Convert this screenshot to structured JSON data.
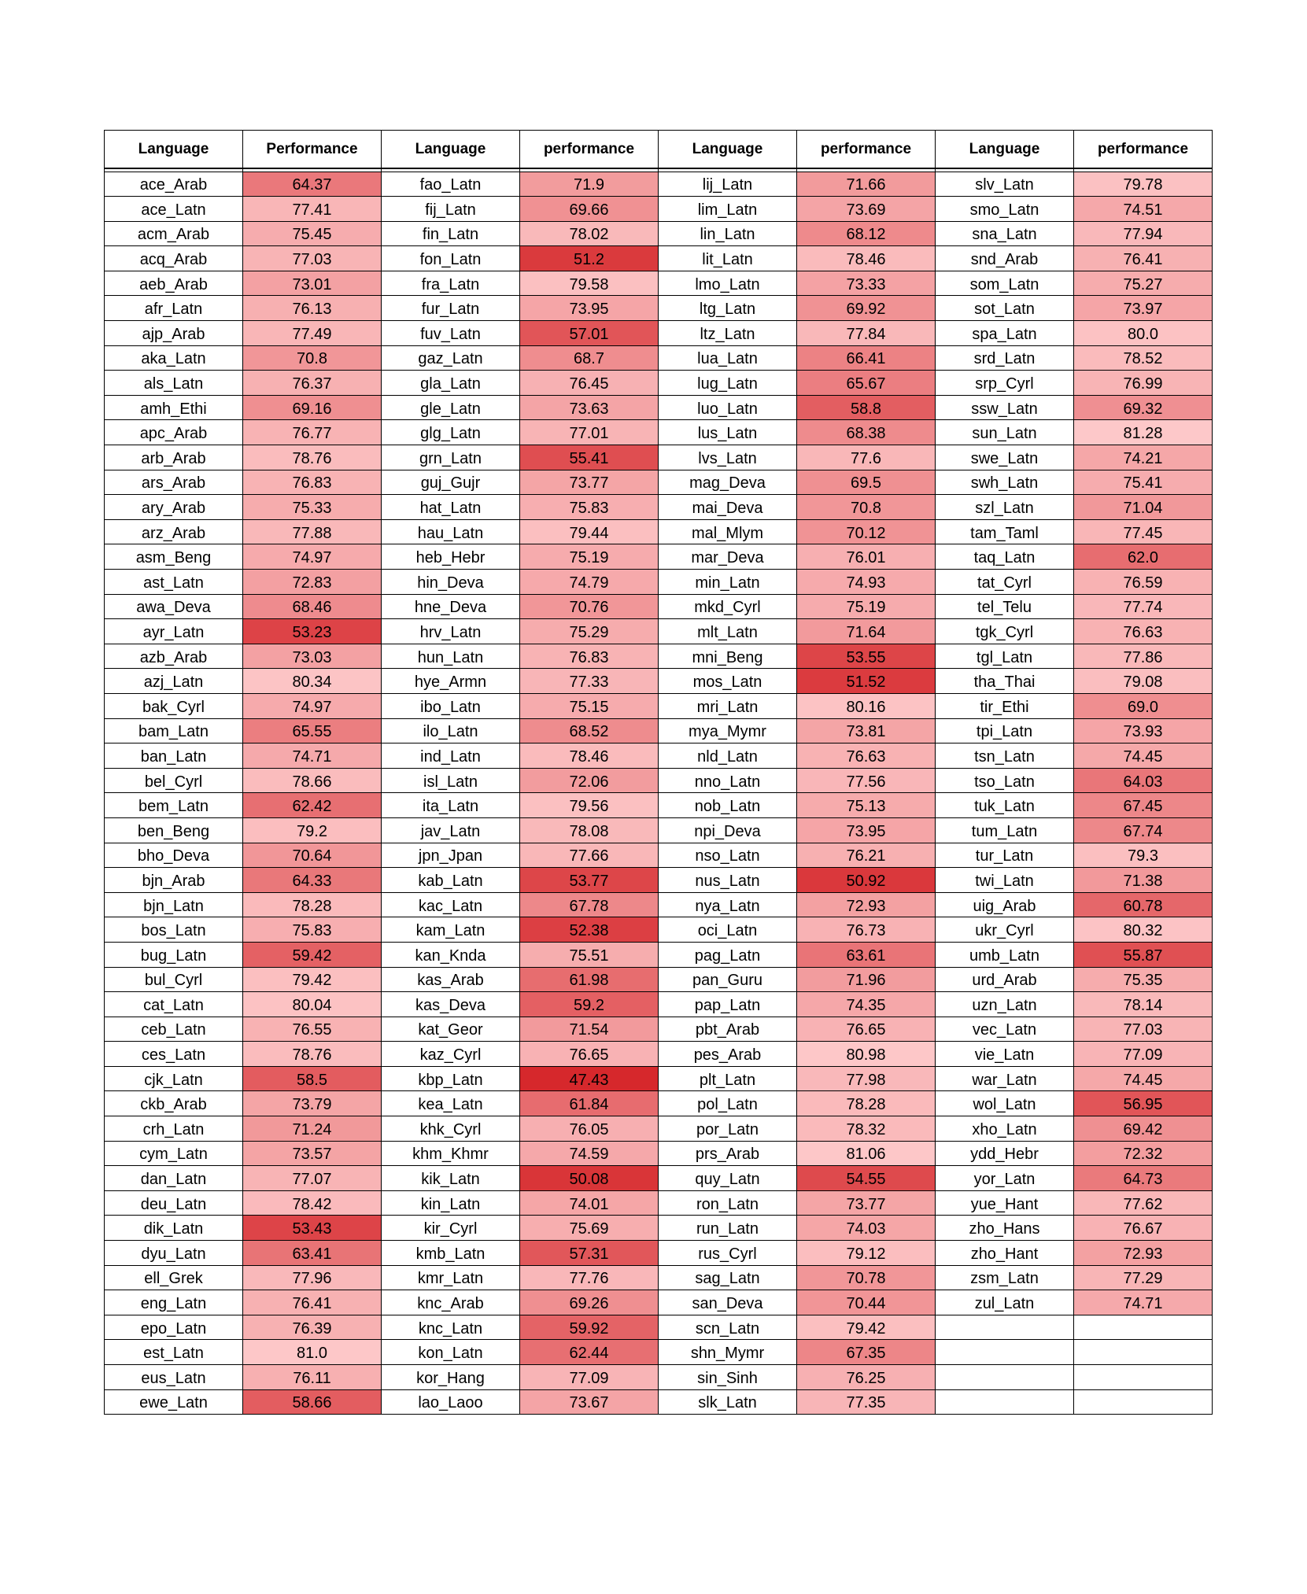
{
  "table": {
    "headers": [
      "Language",
      "Performance",
      "Language",
      "performance",
      "Language",
      "performance",
      "Language",
      "performance"
    ],
    "columns": [
      [
        [
          "ace_Arab",
          "64.37"
        ],
        [
          "ace_Latn",
          "77.41"
        ],
        [
          "acm_Arab",
          "75.45"
        ],
        [
          "acq_Arab",
          "77.03"
        ],
        [
          "aeb_Arab",
          "73.01"
        ],
        [
          "afr_Latn",
          "76.13"
        ],
        [
          "ajp_Arab",
          "77.49"
        ],
        [
          "aka_Latn",
          "70.8"
        ],
        [
          "als_Latn",
          "76.37"
        ],
        [
          "amh_Ethi",
          "69.16"
        ],
        [
          "apc_Arab",
          "76.77"
        ],
        [
          "arb_Arab",
          "78.76"
        ],
        [
          "ars_Arab",
          "76.83"
        ],
        [
          "ary_Arab",
          "75.33"
        ],
        [
          "arz_Arab",
          "77.88"
        ],
        [
          "asm_Beng",
          "74.97"
        ],
        [
          "ast_Latn",
          "72.83"
        ],
        [
          "awa_Deva",
          "68.46"
        ],
        [
          "ayr_Latn",
          "53.23"
        ],
        [
          "azb_Arab",
          "73.03"
        ],
        [
          "azj_Latn",
          "80.34"
        ],
        [
          "bak_Cyrl",
          "74.97"
        ],
        [
          "bam_Latn",
          "65.55"
        ],
        [
          "ban_Latn",
          "74.71"
        ],
        [
          "bel_Cyrl",
          "78.66"
        ],
        [
          "bem_Latn",
          "62.42"
        ],
        [
          "ben_Beng",
          "79.2"
        ],
        [
          "bho_Deva",
          "70.64"
        ],
        [
          "bjn_Arab",
          "64.33"
        ],
        [
          "bjn_Latn",
          "78.28"
        ],
        [
          "bos_Latn",
          "75.83"
        ],
        [
          "bug_Latn",
          "59.42"
        ],
        [
          "bul_Cyrl",
          "79.42"
        ],
        [
          "cat_Latn",
          "80.04"
        ],
        [
          "ceb_Latn",
          "76.55"
        ],
        [
          "ces_Latn",
          "78.76"
        ],
        [
          "cjk_Latn",
          "58.5"
        ],
        [
          "ckb_Arab",
          "73.79"
        ],
        [
          "crh_Latn",
          "71.24"
        ],
        [
          "cym_Latn",
          "73.57"
        ],
        [
          "dan_Latn",
          "77.07"
        ],
        [
          "deu_Latn",
          "78.42"
        ],
        [
          "dik_Latn",
          "53.43"
        ],
        [
          "dyu_Latn",
          "63.41"
        ],
        [
          "ell_Grek",
          "77.96"
        ],
        [
          "eng_Latn",
          "76.41"
        ],
        [
          "epo_Latn",
          "76.39"
        ],
        [
          "est_Latn",
          "81.0"
        ],
        [
          "eus_Latn",
          "76.11"
        ],
        [
          "ewe_Latn",
          "58.66"
        ]
      ],
      [
        [
          "fao_Latn",
          "71.9"
        ],
        [
          "fij_Latn",
          "69.66"
        ],
        [
          "fin_Latn",
          "78.02"
        ],
        [
          "fon_Latn",
          "51.2"
        ],
        [
          "fra_Latn",
          "79.58"
        ],
        [
          "fur_Latn",
          "73.95"
        ],
        [
          "fuv_Latn",
          "57.01"
        ],
        [
          "gaz_Latn",
          "68.7"
        ],
        [
          "gla_Latn",
          "76.45"
        ],
        [
          "gle_Latn",
          "73.63"
        ],
        [
          "glg_Latn",
          "77.01"
        ],
        [
          "grn_Latn",
          "55.41"
        ],
        [
          "guj_Gujr",
          "73.77"
        ],
        [
          "hat_Latn",
          "75.83"
        ],
        [
          "hau_Latn",
          "79.44"
        ],
        [
          "heb_Hebr",
          "75.19"
        ],
        [
          "hin_Deva",
          "74.79"
        ],
        [
          "hne_Deva",
          "70.76"
        ],
        [
          "hrv_Latn",
          "75.29"
        ],
        [
          "hun_Latn",
          "76.83"
        ],
        [
          "hye_Armn",
          "77.33"
        ],
        [
          "ibo_Latn",
          "75.15"
        ],
        [
          "ilo_Latn",
          "68.52"
        ],
        [
          "ind_Latn",
          "78.46"
        ],
        [
          "isl_Latn",
          "72.06"
        ],
        [
          "ita_Latn",
          "79.56"
        ],
        [
          "jav_Latn",
          "78.08"
        ],
        [
          "jpn_Jpan",
          "77.66"
        ],
        [
          "kab_Latn",
          "53.77"
        ],
        [
          "kac_Latn",
          "67.78"
        ],
        [
          "kam_Latn",
          "52.38"
        ],
        [
          "kan_Knda",
          "75.51"
        ],
        [
          "kas_Arab",
          "61.98"
        ],
        [
          "kas_Deva",
          "59.2"
        ],
        [
          "kat_Geor",
          "71.54"
        ],
        [
          "kaz_Cyrl",
          "76.65"
        ],
        [
          "kbp_Latn",
          "47.43"
        ],
        [
          "kea_Latn",
          "61.84"
        ],
        [
          "khk_Cyrl",
          "76.05"
        ],
        [
          "khm_Khmr",
          "74.59"
        ],
        [
          "kik_Latn",
          "50.08"
        ],
        [
          "kin_Latn",
          "74.01"
        ],
        [
          "kir_Cyrl",
          "75.69"
        ],
        [
          "kmb_Latn",
          "57.31"
        ],
        [
          "kmr_Latn",
          "77.76"
        ],
        [
          "knc_Arab",
          "69.26"
        ],
        [
          "knc_Latn",
          "59.92"
        ],
        [
          "kon_Latn",
          "62.44"
        ],
        [
          "kor_Hang",
          "77.09"
        ],
        [
          "lao_Laoo",
          "73.67"
        ]
      ],
      [
        [
          "lij_Latn",
          "71.66"
        ],
        [
          "lim_Latn",
          "73.69"
        ],
        [
          "lin_Latn",
          "68.12"
        ],
        [
          "lit_Latn",
          "78.46"
        ],
        [
          "lmo_Latn",
          "73.33"
        ],
        [
          "ltg_Latn",
          "69.92"
        ],
        [
          "ltz_Latn",
          "77.84"
        ],
        [
          "lua_Latn",
          "66.41"
        ],
        [
          "lug_Latn",
          "65.67"
        ],
        [
          "luo_Latn",
          "58.8"
        ],
        [
          "lus_Latn",
          "68.38"
        ],
        [
          "lvs_Latn",
          "77.6"
        ],
        [
          "mag_Deva",
          "69.5"
        ],
        [
          "mai_Deva",
          "70.8"
        ],
        [
          "mal_Mlym",
          "70.12"
        ],
        [
          "mar_Deva",
          "76.01"
        ],
        [
          "min_Latn",
          "74.93"
        ],
        [
          "mkd_Cyrl",
          "75.19"
        ],
        [
          "mlt_Latn",
          "71.64"
        ],
        [
          "mni_Beng",
          "53.55"
        ],
        [
          "mos_Latn",
          "51.52"
        ],
        [
          "mri_Latn",
          "80.16"
        ],
        [
          "mya_Mymr",
          "73.81"
        ],
        [
          "nld_Latn",
          "76.63"
        ],
        [
          "nno_Latn",
          "77.56"
        ],
        [
          "nob_Latn",
          "75.13"
        ],
        [
          "npi_Deva",
          "73.95"
        ],
        [
          "nso_Latn",
          "76.21"
        ],
        [
          "nus_Latn",
          "50.92"
        ],
        [
          "nya_Latn",
          "72.93"
        ],
        [
          "oci_Latn",
          "76.73"
        ],
        [
          "pag_Latn",
          "63.61"
        ],
        [
          "pan_Guru",
          "71.96"
        ],
        [
          "pap_Latn",
          "74.35"
        ],
        [
          "pbt_Arab",
          "76.65"
        ],
        [
          "pes_Arab",
          "80.98"
        ],
        [
          "plt_Latn",
          "77.98"
        ],
        [
          "pol_Latn",
          "78.28"
        ],
        [
          "por_Latn",
          "78.32"
        ],
        [
          "prs_Arab",
          "81.06"
        ],
        [
          "quy_Latn",
          "54.55"
        ],
        [
          "ron_Latn",
          "73.77"
        ],
        [
          "run_Latn",
          "74.03"
        ],
        [
          "rus_Cyrl",
          "79.12"
        ],
        [
          "sag_Latn",
          "70.78"
        ],
        [
          "san_Deva",
          "70.44"
        ],
        [
          "scn_Latn",
          "79.42"
        ],
        [
          "shn_Mymr",
          "67.35"
        ],
        [
          "sin_Sinh",
          "76.25"
        ],
        [
          "slk_Latn",
          "77.35"
        ]
      ],
      [
        [
          "slv_Latn",
          "79.78"
        ],
        [
          "smo_Latn",
          "74.51"
        ],
        [
          "sna_Latn",
          "77.94"
        ],
        [
          "snd_Arab",
          "76.41"
        ],
        [
          "som_Latn",
          "75.27"
        ],
        [
          "sot_Latn",
          "73.97"
        ],
        [
          "spa_Latn",
          "80.0"
        ],
        [
          "srd_Latn",
          "78.52"
        ],
        [
          "srp_Cyrl",
          "76.99"
        ],
        [
          "ssw_Latn",
          "69.32"
        ],
        [
          "sun_Latn",
          "81.28"
        ],
        [
          "swe_Latn",
          "74.21"
        ],
        [
          "swh_Latn",
          "75.41"
        ],
        [
          "szl_Latn",
          "71.04"
        ],
        [
          "tam_Taml",
          "77.45"
        ],
        [
          "taq_Latn",
          "62.0"
        ],
        [
          "tat_Cyrl",
          "76.59"
        ],
        [
          "tel_Telu",
          "77.74"
        ],
        [
          "tgk_Cyrl",
          "76.63"
        ],
        [
          "tgl_Latn",
          "77.86"
        ],
        [
          "tha_Thai",
          "79.08"
        ],
        [
          "tir_Ethi",
          "69.0"
        ],
        [
          "tpi_Latn",
          "73.93"
        ],
        [
          "tsn_Latn",
          "74.45"
        ],
        [
          "tso_Latn",
          "64.03"
        ],
        [
          "tuk_Latn",
          "67.45"
        ],
        [
          "tum_Latn",
          "67.74"
        ],
        [
          "tur_Latn",
          "79.3"
        ],
        [
          "twi_Latn",
          "71.38"
        ],
        [
          "uig_Arab",
          "60.78"
        ],
        [
          "ukr_Cyrl",
          "80.32"
        ],
        [
          "umb_Latn",
          "55.87"
        ],
        [
          "urd_Arab",
          "75.35"
        ],
        [
          "uzn_Latn",
          "78.14"
        ],
        [
          "vec_Latn",
          "77.03"
        ],
        [
          "vie_Latn",
          "77.09"
        ],
        [
          "war_Latn",
          "74.45"
        ],
        [
          "wol_Latn",
          "56.95"
        ],
        [
          "xho_Latn",
          "69.42"
        ],
        [
          "ydd_Hebr",
          "72.32"
        ],
        [
          "yor_Latn",
          "64.73"
        ],
        [
          "yue_Hant",
          "77.62"
        ],
        [
          "zho_Hans",
          "76.67"
        ],
        [
          "zho_Hant",
          "72.93"
        ],
        [
          "zsm_Latn",
          "77.29"
        ],
        [
          "zul_Latn",
          "74.71"
        ]
      ]
    ],
    "colors": {
      "low": "#d6282c",
      "high": "#fdc8c9",
      "value_min": 47.43,
      "value_max": 81.28
    }
  }
}
